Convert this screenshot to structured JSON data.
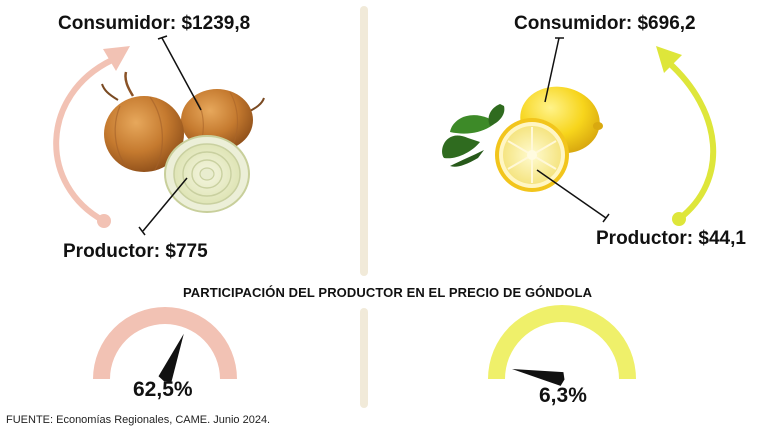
{
  "colors": {
    "onion_accent": "#f2c2b4",
    "lemon_accent": "#dee63a",
    "divider": "#f1ead9",
    "needle": "#111111"
  },
  "left": {
    "product_icon": "onion-image",
    "consumer_label": "Consumidor: $1239,8",
    "producer_label": "Productor: $775",
    "gauge_percent_label": "62,5%",
    "gauge_share": 0.625
  },
  "right": {
    "product_icon": "lemon-image",
    "consumer_label": "Consumidor: $696,2",
    "producer_label": "Productor: $44,1",
    "gauge_percent_label": "6,3%",
    "gauge_share": 0.063
  },
  "subtitle": "PARTICIPACIÓN DEL PRODUCTOR EN EL PRECIO DE GÓNDOLA",
  "source": "FUENTE: Economías Regionales, CAME. Junio 2024."
}
